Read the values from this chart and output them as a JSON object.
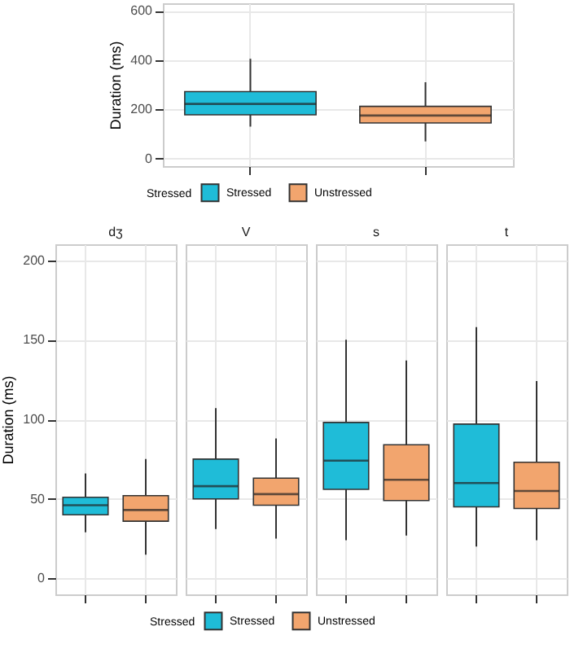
{
  "chart_data": [
    {
      "type": "box",
      "categories": [
        null
      ],
      "ylabel": "Duration (ms)",
      "ylim": [
        -30,
        630
      ],
      "yticks": [
        0,
        200,
        400,
        600
      ],
      "grid": true,
      "tick_labels": "y",
      "legend": "bottom",
      "legend_title": "Stressed",
      "series": [
        {
          "name": "Stressed",
          "color": "#1fbcd8",
          "boxes": [
            {
              "low": 130,
              "q1": 178,
              "median": 222,
              "q3": 272,
              "high": 405
            }
          ]
        },
        {
          "name": "Unstressed",
          "color": "#f2a56e",
          "boxes": [
            {
              "low": 70,
              "q1": 145,
              "median": 175,
              "q3": 212,
              "high": 310
            }
          ]
        }
      ]
    },
    {
      "type": "box",
      "categories": [
        "dʒ",
        "V",
        "s",
        "t"
      ],
      "ylabel": "Duration (ms)",
      "ylim": [
        -10,
        210
      ],
      "yticks": [
        0,
        50,
        100,
        150,
        200
      ],
      "grid": true,
      "legend": "bottom",
      "legend_title": "Stressed",
      "series": [
        {
          "name": "Stressed",
          "color": "#1fbcd8",
          "boxes": [
            {
              "low": 29,
              "q1": 40,
              "median": 46,
              "q3": 51,
              "high": 66
            },
            {
              "low": 31,
              "q1": 50,
              "median": 58,
              "q3": 75,
              "high": 107
            },
            {
              "low": 24,
              "q1": 56,
              "median": 74,
              "q3": 98,
              "high": 150
            },
            {
              "low": 20,
              "q1": 45,
              "median": 60,
              "q3": 97,
              "high": 158
            }
          ]
        },
        {
          "name": "Unstressed",
          "color": "#f2a56e",
          "boxes": [
            {
              "low": 15,
              "q1": 36,
              "median": 43,
              "q3": 52,
              "high": 75
            },
            {
              "low": 25,
              "q1": 46,
              "median": 53,
              "q3": 63,
              "high": 88
            },
            {
              "low": 27,
              "q1": 49,
              "median": 62,
              "q3": 84,
              "high": 137
            },
            {
              "low": 24,
              "q1": 44,
              "median": 55,
              "q3": 73,
              "high": 124
            }
          ]
        }
      ]
    }
  ]
}
